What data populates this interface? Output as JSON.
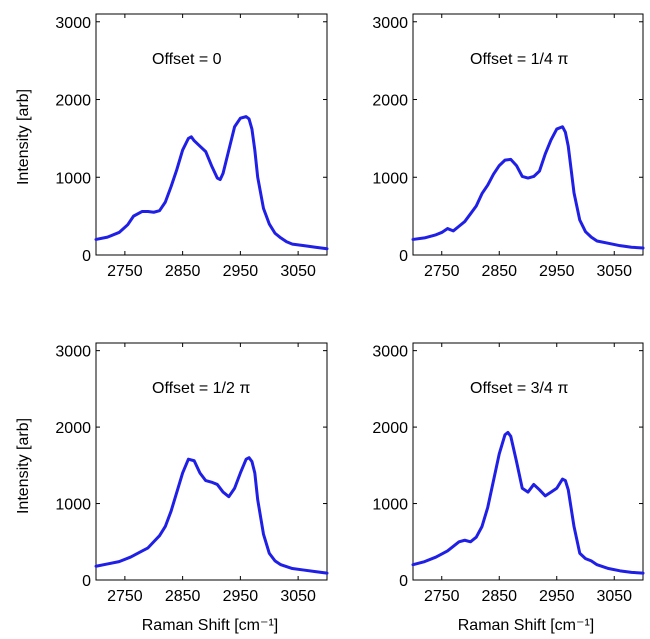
{
  "colors": {
    "line": "#1f1fe6"
  },
  "chart_data": [
    {
      "type": "line",
      "annotation": "Offset = 0",
      "xlabel": "",
      "ylabel": "Intensity [arb]",
      "xlim": [
        2700,
        3100
      ],
      "ylim": [
        0,
        3100
      ],
      "xticks": [
        "2750",
        "2850",
        "2950",
        "3050"
      ],
      "yticks": [
        "0",
        "1000",
        "2000",
        "3000"
      ],
      "series": [
        {
          "x": [
            2700,
            2720,
            2740,
            2755,
            2765,
            2780,
            2790,
            2800,
            2810,
            2820,
            2830,
            2840,
            2850,
            2860,
            2865,
            2870,
            2880,
            2890,
            2900,
            2910,
            2915,
            2920,
            2930,
            2940,
            2950,
            2960,
            2965,
            2970,
            2975,
            2980,
            2990,
            3000,
            3010,
            3020,
            3030,
            3040,
            3060,
            3080,
            3100
          ],
          "y": [
            200,
            230,
            290,
            390,
            500,
            560,
            560,
            550,
            570,
            680,
            880,
            1100,
            1350,
            1500,
            1520,
            1470,
            1400,
            1330,
            1150,
            990,
            970,
            1050,
            1350,
            1650,
            1760,
            1780,
            1750,
            1620,
            1350,
            1000,
            600,
            400,
            280,
            220,
            170,
            140,
            120,
            100,
            80
          ]
        }
      ]
    },
    {
      "type": "line",
      "annotation": "Offset = 1/4 π",
      "xlabel": "",
      "ylabel": "",
      "xlim": [
        2700,
        3100
      ],
      "ylim": [
        0,
        3100
      ],
      "xticks": [
        "2750",
        "2850",
        "2950",
        "3050"
      ],
      "yticks": [
        "0",
        "1000",
        "2000",
        "3000"
      ],
      "series": [
        {
          "x": [
            2700,
            2720,
            2740,
            2750,
            2760,
            2770,
            2780,
            2790,
            2800,
            2810,
            2820,
            2830,
            2840,
            2850,
            2860,
            2870,
            2880,
            2890,
            2900,
            2910,
            2920,
            2930,
            2940,
            2950,
            2960,
            2965,
            2970,
            2975,
            2980,
            2990,
            3000,
            3010,
            3020,
            3040,
            3060,
            3080,
            3100
          ],
          "y": [
            200,
            220,
            260,
            290,
            340,
            310,
            370,
            430,
            530,
            630,
            790,
            900,
            1040,
            1150,
            1220,
            1230,
            1150,
            1010,
            990,
            1010,
            1080,
            1300,
            1480,
            1620,
            1650,
            1580,
            1400,
            1100,
            800,
            450,
            300,
            230,
            180,
            150,
            120,
            100,
            90
          ]
        }
      ]
    },
    {
      "type": "line",
      "annotation": "Offset = 1/2 π",
      "xlabel": "Raman Shift [cm⁻¹]",
      "ylabel": "Intensity [arb]",
      "xlim": [
        2700,
        3100
      ],
      "ylim": [
        0,
        3100
      ],
      "xticks": [
        "2750",
        "2850",
        "2950",
        "3050"
      ],
      "yticks": [
        "0",
        "1000",
        "2000",
        "3000"
      ],
      "series": [
        {
          "x": [
            2700,
            2720,
            2740,
            2760,
            2780,
            2790,
            2800,
            2810,
            2820,
            2830,
            2840,
            2850,
            2860,
            2870,
            2880,
            2890,
            2900,
            2910,
            2920,
            2930,
            2940,
            2950,
            2960,
            2965,
            2970,
            2975,
            2980,
            2990,
            3000,
            3010,
            3020,
            3040,
            3060,
            3080,
            3100
          ],
          "y": [
            180,
            210,
            240,
            300,
            380,
            420,
            500,
            580,
            700,
            900,
            1150,
            1400,
            1580,
            1560,
            1400,
            1300,
            1280,
            1250,
            1150,
            1090,
            1200,
            1400,
            1580,
            1600,
            1550,
            1400,
            1050,
            600,
            350,
            250,
            200,
            150,
            130,
            110,
            90
          ]
        }
      ]
    },
    {
      "type": "line",
      "annotation": "Offset = 3/4 π",
      "xlabel": "Raman Shift [cm⁻¹]",
      "ylabel": "",
      "xlim": [
        2700,
        3100
      ],
      "ylim": [
        0,
        3100
      ],
      "xticks": [
        "2750",
        "2850",
        "2950",
        "3050"
      ],
      "yticks": [
        "0",
        "1000",
        "2000",
        "3000"
      ],
      "series": [
        {
          "x": [
            2700,
            2720,
            2740,
            2760,
            2780,
            2790,
            2800,
            2810,
            2820,
            2830,
            2840,
            2850,
            2860,
            2865,
            2870,
            2880,
            2890,
            2900,
            2910,
            2920,
            2930,
            2940,
            2950,
            2960,
            2965,
            2970,
            2980,
            2990,
            3000,
            3010,
            3020,
            3040,
            3060,
            3080,
            3100
          ],
          "y": [
            200,
            240,
            300,
            380,
            500,
            520,
            500,
            560,
            700,
            950,
            1300,
            1650,
            1900,
            1930,
            1880,
            1550,
            1200,
            1150,
            1250,
            1180,
            1100,
            1150,
            1200,
            1320,
            1300,
            1180,
            700,
            350,
            280,
            250,
            200,
            150,
            120,
            100,
            90
          ]
        }
      ]
    }
  ]
}
